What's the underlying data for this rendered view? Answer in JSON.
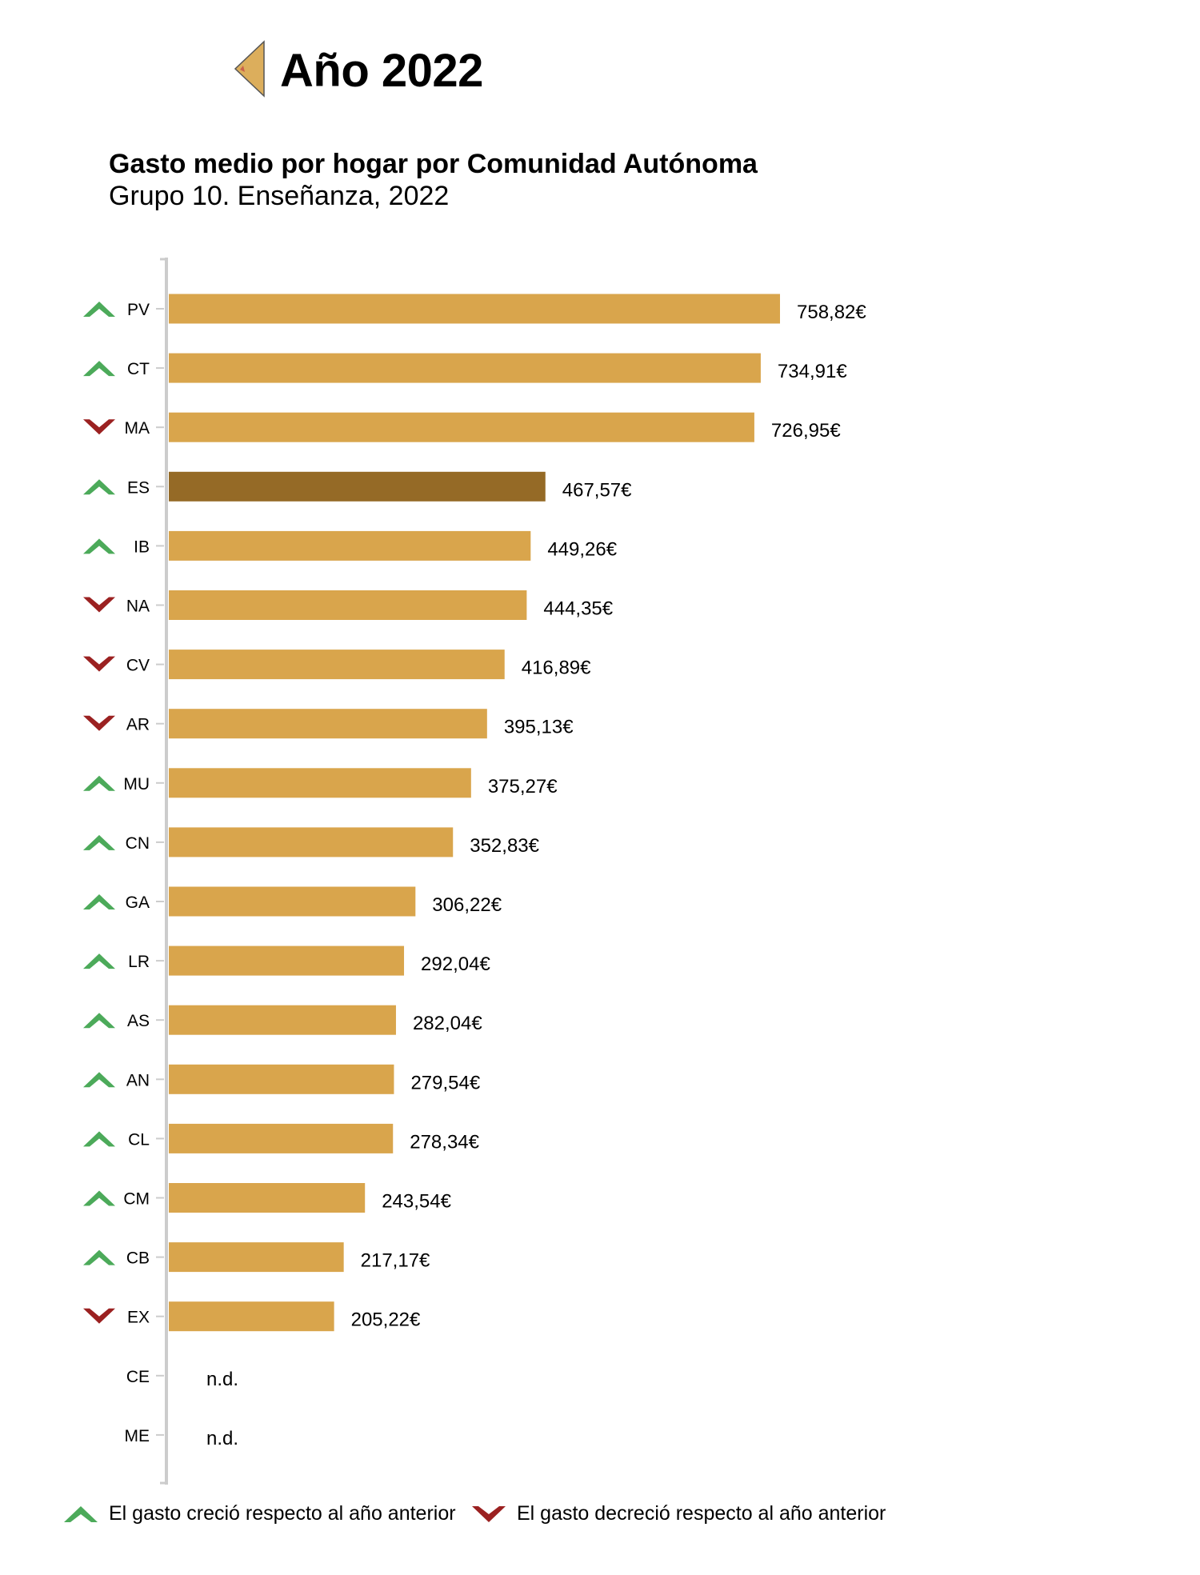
{
  "header": {
    "year_title": "Año 2022",
    "prev_icon": "triangle-left-icon"
  },
  "chart_data": {
    "type": "bar",
    "orientation": "horizontal",
    "title": "Gasto medio por hogar por Comunidad Autónoma",
    "subtitle": "Grupo 10. Enseñanza, 2022",
    "categories": [
      "PV",
      "CT",
      "MA",
      "ES",
      "IB",
      "NA",
      "CV",
      "AR",
      "MU",
      "CN",
      "GA",
      "LR",
      "AS",
      "AN",
      "CL",
      "CM",
      "CB",
      "EX",
      "CE",
      "ME"
    ],
    "values": [
      758.82,
      734.91,
      726.95,
      467.57,
      449.26,
      444.35,
      416.89,
      395.13,
      375.27,
      352.83,
      306.22,
      292.04,
      282.04,
      279.54,
      278.34,
      243.54,
      217.17,
      205.22,
      null,
      null
    ],
    "value_labels": [
      "758,82€",
      "734,91€",
      "726,95€",
      "467,57€",
      "449,26€",
      "444,35€",
      "416,89€",
      "395,13€",
      "375,27€",
      "352,83€",
      "306,22€",
      "292,04€",
      "282,04€",
      "279,54€",
      "278,34€",
      "243,54€",
      "217,17€",
      "205,22€",
      "n.d.",
      "n.d."
    ],
    "trend": [
      "up",
      "up",
      "down",
      "up",
      "up",
      "down",
      "down",
      "down",
      "up",
      "up",
      "up",
      "up",
      "up",
      "up",
      "up",
      "up",
      "up",
      "down",
      null,
      null
    ],
    "highlight": "ES",
    "xlim": [
      0,
      760
    ],
    "colors": {
      "bar": "#d9a54c",
      "highlight": "#956a26",
      "up": "#4caa5a",
      "down": "#9b2121",
      "axis": "#cccccc"
    },
    "legend": {
      "up": "El gasto creció respecto al año anterior",
      "down": "El gasto decreció respecto al año anterior"
    }
  }
}
